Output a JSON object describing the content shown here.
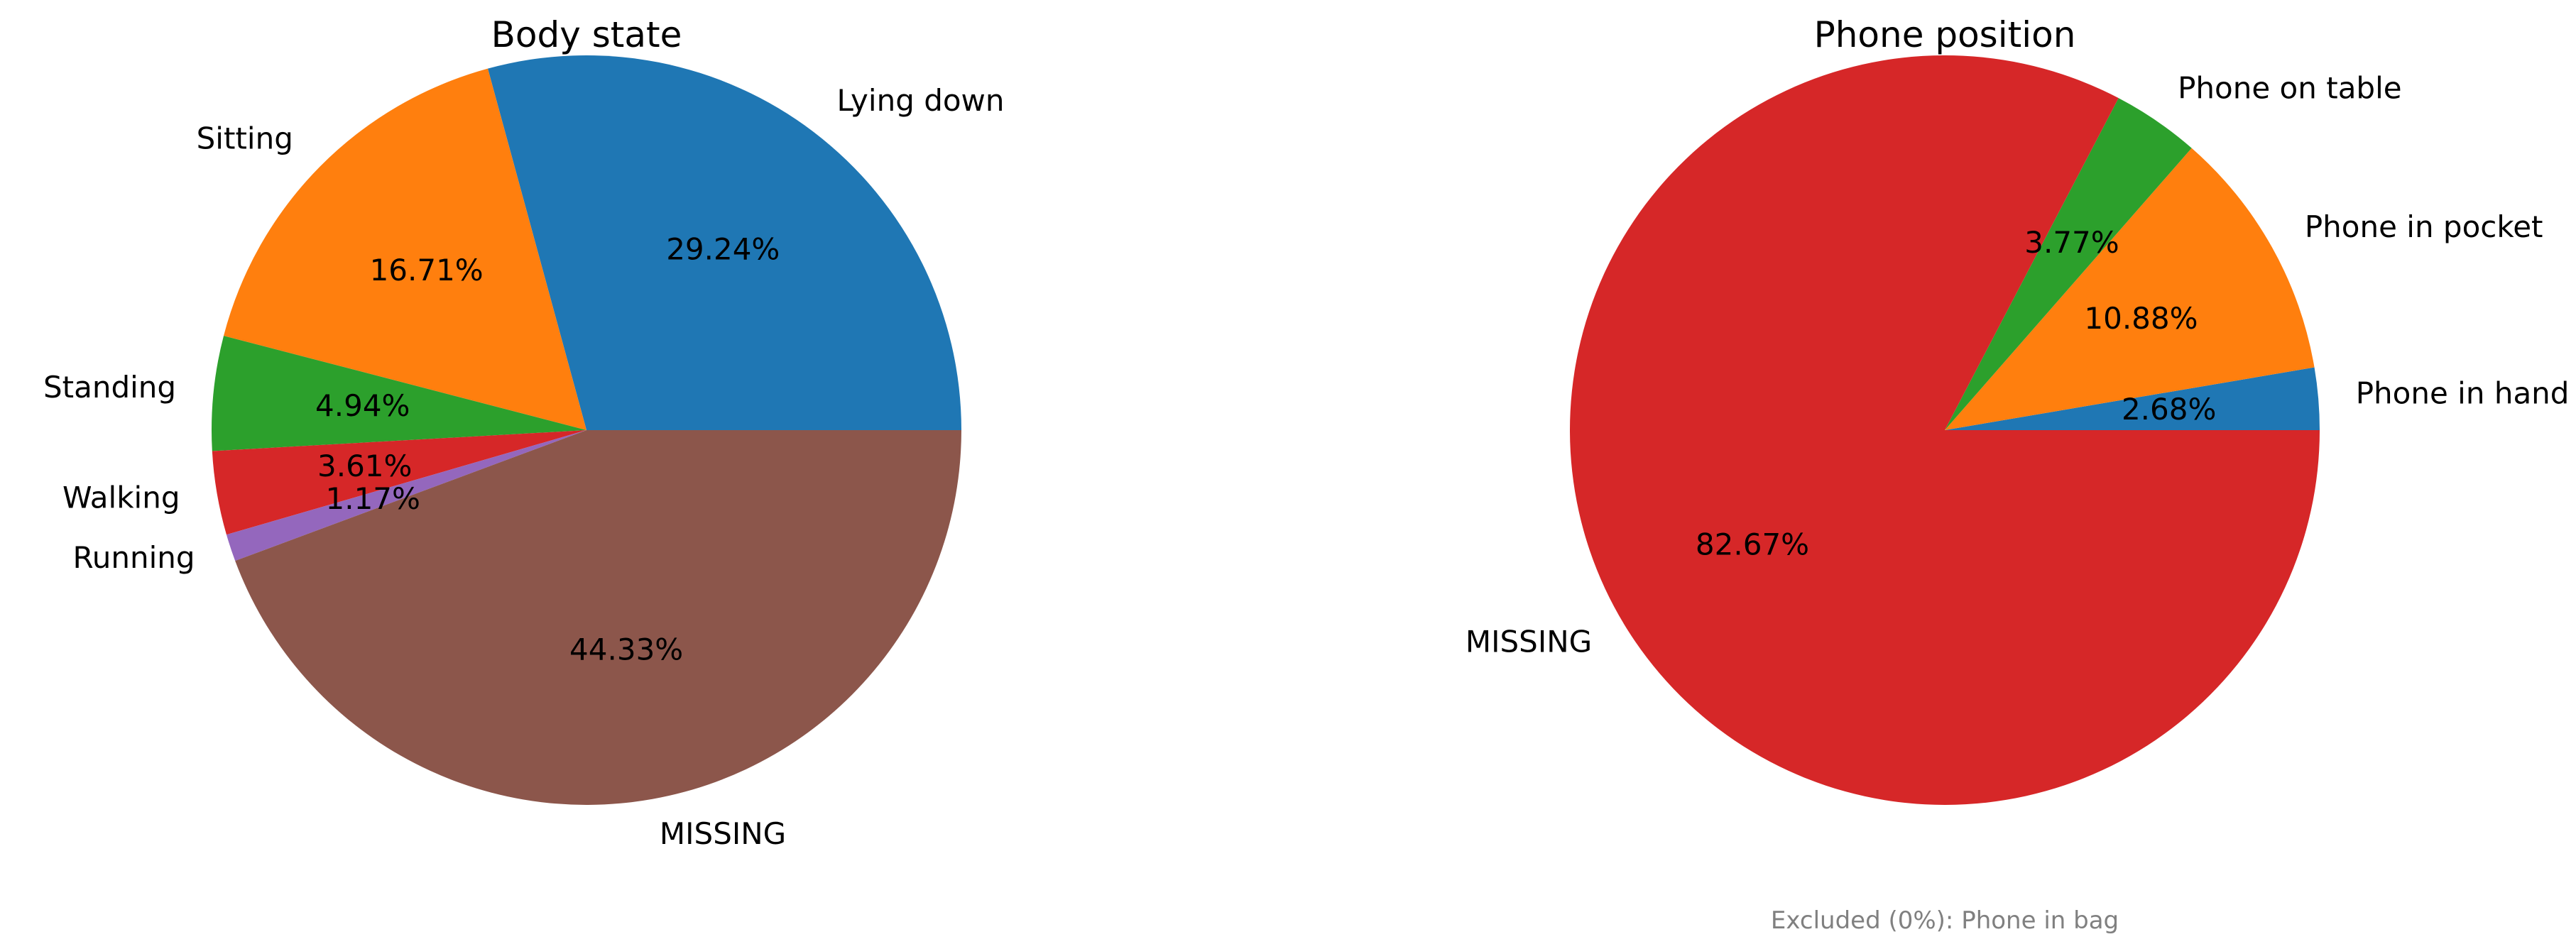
{
  "chart_data": [
    {
      "type": "pie",
      "title": "Body state",
      "slices": [
        {
          "label": "Lying down",
          "value": 29.24,
          "pct_label": "29.24%",
          "color": "#1f77b4"
        },
        {
          "label": "Sitting",
          "value": 16.71,
          "pct_label": "16.71%",
          "color": "#ff7f0e"
        },
        {
          "label": "Standing",
          "value": 4.94,
          "pct_label": "4.94%",
          "color": "#2ca02c"
        },
        {
          "label": "Walking",
          "value": 3.61,
          "pct_label": "3.61%",
          "color": "#d62728"
        },
        {
          "label": "Running",
          "value": 1.17,
          "pct_label": "1.17%",
          "color": "#9467bd"
        },
        {
          "label": "MISSING",
          "value": 44.33,
          "pct_label": "44.33%",
          "color": "#8c564b"
        }
      ],
      "start_angle": 0,
      "direction": "counterclockwise",
      "note": ""
    },
    {
      "type": "pie",
      "title": "Phone position",
      "slices": [
        {
          "label": "Phone in hand",
          "value": 2.68,
          "pct_label": "2.68%",
          "color": "#1f77b4"
        },
        {
          "label": "Phone in pocket",
          "value": 10.88,
          "pct_label": "10.88%",
          "color": "#ff7f0e"
        },
        {
          "label": "Phone on table",
          "value": 3.77,
          "pct_label": "3.77%",
          "color": "#2ca02c"
        },
        {
          "label": "MISSING",
          "value": 82.67,
          "pct_label": "82.67%",
          "color": "#d62728"
        }
      ],
      "start_angle": 0,
      "direction": "counterclockwise",
      "note": "Excluded (0%): Phone in bag"
    }
  ]
}
